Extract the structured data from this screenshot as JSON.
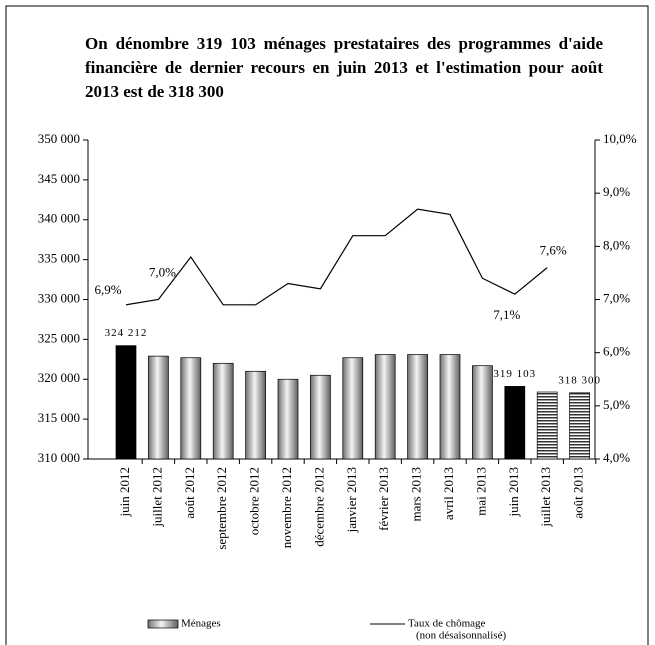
{
  "chart_data": {
    "type": "bar-line",
    "title": "On dénombre 319 103 ménages prestataires des programmes d'aide financière de dernier recours en juin 2013 et l'estimation pour août 2013 est de 318 300",
    "categories": [
      "juin 2012",
      "juillet 2012",
      "août 2012",
      "septembre 2012",
      "octobre 2012",
      "novembre 2012",
      "décembre 2012",
      "janvier 2013",
      "février 2013",
      "mars 2013",
      "avril 2013",
      "mai 2013",
      "juin 2013",
      "juillet 2013",
      "août 2013"
    ],
    "series": [
      {
        "name": "Ménages",
        "type": "bar",
        "color": "#c8c8c8",
        "values": [
          324212,
          322900,
          322700,
          322000,
          321000,
          320000,
          320500,
          322700,
          323100,
          323100,
          323100,
          321700,
          319103,
          318400,
          318300
        ],
        "value_labels": [
          "324 212",
          null,
          null,
          null,
          null,
          null,
          null,
          null,
          null,
          null,
          null,
          null,
          "319 103",
          null,
          "318 300"
        ],
        "point_styles": [
          "black",
          "shaded",
          "shaded",
          "shaded",
          "shaded",
          "shaded",
          "shaded",
          "shaded",
          "shaded",
          "shaded",
          "shaded",
          "shaded",
          "black",
          "striped",
          "striped"
        ]
      },
      {
        "name": "Taux de chômage",
        "legend_note": "(non désaisonnalisé)",
        "type": "line",
        "axis": "y2",
        "color": "#000000",
        "values": [
          6.9,
          7.0,
          7.8,
          6.9,
          6.9,
          7.3,
          7.2,
          8.2,
          8.2,
          8.7,
          8.6,
          7.4,
          7.1,
          7.6,
          null
        ],
        "value_labels": [
          "6,9%",
          "7,0%",
          null,
          null,
          null,
          null,
          null,
          null,
          null,
          null,
          null,
          null,
          "7,1%",
          "7,6%",
          null
        ]
      }
    ],
    "ylim": [
      310000,
      350000
    ],
    "yticks": [
      {
        "value": 310000,
        "label": "310 000"
      },
      {
        "value": 315000,
        "label": "315 000"
      },
      {
        "value": 320000,
        "label": "320 000"
      },
      {
        "value": 325000,
        "label": "325 000"
      },
      {
        "value": 330000,
        "label": "330 000"
      },
      {
        "value": 335000,
        "label": "335 000"
      },
      {
        "value": 340000,
        "label": "340 000"
      },
      {
        "value": 345000,
        "label": "345 000"
      },
      {
        "value": 350000,
        "label": "350 000"
      }
    ],
    "y2lim": [
      4,
      10
    ],
    "y2ticks": [
      {
        "value": 4,
        "label": "4,0%"
      },
      {
        "value": 5,
        "label": "5,0%"
      },
      {
        "value": 6,
        "label": "6,0%"
      },
      {
        "value": 7,
        "label": "7,0%"
      },
      {
        "value": 8,
        "label": "8,0%"
      },
      {
        "value": 9,
        "label": "9,0%"
      },
      {
        "value": 10,
        "label": "10,0%"
      }
    ]
  }
}
